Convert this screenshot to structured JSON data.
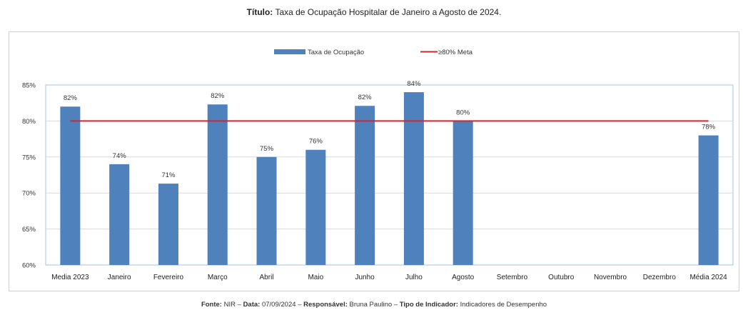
{
  "header": {
    "title_label": "Título:",
    "title_text": "Taxa de Ocupação Hospitalar de Janeiro a Agosto de 2024."
  },
  "footer": {
    "fonte_label": "Fonte:",
    "fonte_value": "NIR –",
    "data_label": "Data:",
    "data_value": "07/09/2024 –",
    "responsavel_label": "Responsável:",
    "responsavel_value": "Bruna Paulino –",
    "tipo_label": "Tipo de Indicador:",
    "tipo_value": "Indicadores de Desempenho"
  },
  "colors": {
    "bar": "#4f81bd",
    "target_line": "#d0262e",
    "grid": "#d9d9d9",
    "plot_border": "#a6c3e0"
  },
  "chart_data": {
    "type": "bar",
    "categories": [
      "Media 2023",
      "Janeiro",
      "Fevereiro",
      "Março",
      "Abril",
      "Maio",
      "Junho",
      "Julho",
      "Agosto",
      "Setembro",
      "Outubro",
      "Novembro",
      "Dezembro",
      "Média 2024"
    ],
    "series": [
      {
        "name": "Taxa de Ocupação",
        "values": [
          82,
          74,
          71.3,
          82.3,
          75,
          76,
          82.1,
          84,
          80,
          null,
          null,
          null,
          null,
          78
        ],
        "data_labels": [
          "82%",
          "74%",
          "71%",
          "82%",
          "75%",
          "76%",
          "82%",
          "84%",
          "80%",
          "",
          "",
          "",
          "",
          "78%"
        ]
      }
    ],
    "target": {
      "name": "≥80% Meta",
      "value": 80
    },
    "ylim": [
      60,
      85
    ],
    "yticks": [
      60,
      65,
      70,
      75,
      80,
      85
    ],
    "ytick_labels": [
      "60%",
      "65%",
      "70%",
      "75%",
      "80%",
      "85%"
    ],
    "grid": true,
    "legend": "top-center"
  }
}
